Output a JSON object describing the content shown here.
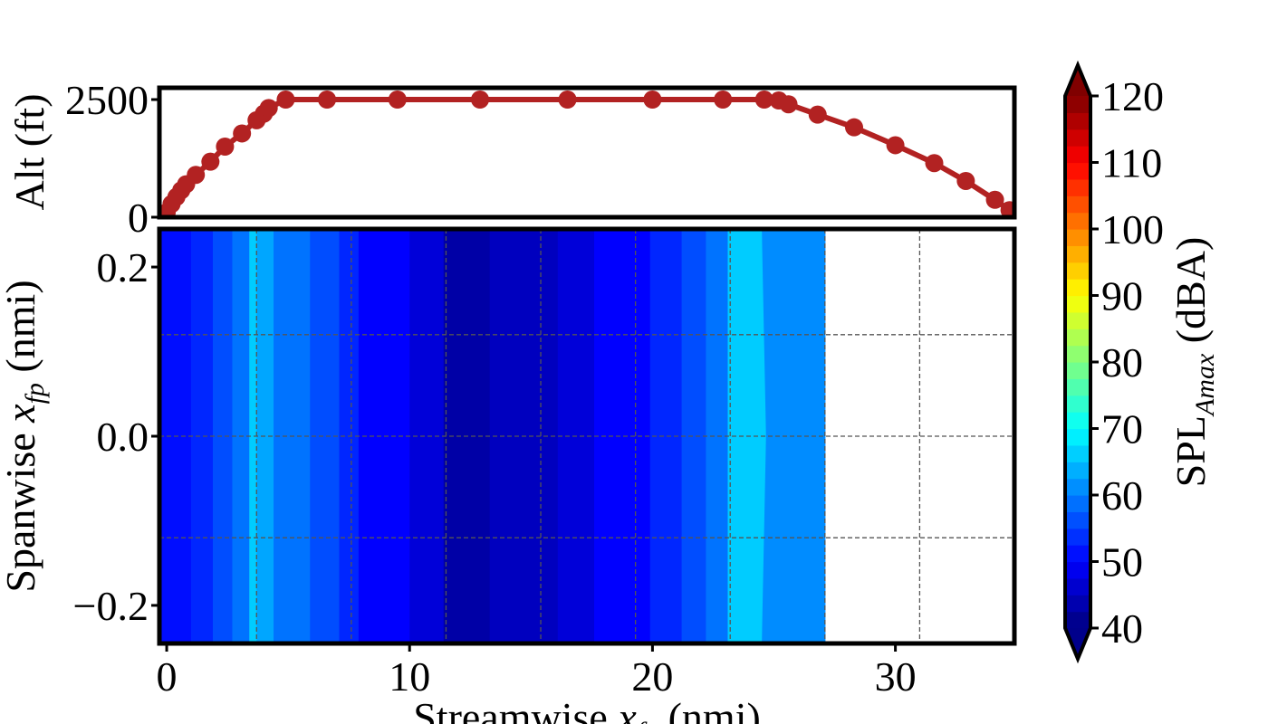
{
  "chart_data": [
    {
      "type": "line",
      "panel": "altitude-profile",
      "ylabel": "Alt (ft)",
      "xlim": [
        -0.3,
        34.9
      ],
      "ylim": [
        0,
        2750
      ],
      "yticks": [
        "0",
        "2500"
      ],
      "color": "#b22222",
      "x": [
        0.0,
        0.2,
        0.4,
        0.6,
        0.8,
        1.2,
        1.8,
        2.4,
        3.1,
        3.7,
        4.0,
        4.2,
        4.9,
        6.6,
        9.5,
        12.9,
        16.5,
        20.0,
        22.9,
        24.6,
        25.2,
        25.6,
        26.8,
        28.3,
        30.0,
        31.6,
        32.9,
        34.1,
        34.7
      ],
      "y": [
        100,
        280,
        430,
        570,
        700,
        900,
        1180,
        1500,
        1780,
        2060,
        2200,
        2320,
        2500,
        2500,
        2500,
        2500,
        2500,
        2500,
        2500,
        2500,
        2480,
        2400,
        2180,
        1910,
        1530,
        1150,
        770,
        370,
        150
      ]
    },
    {
      "type": "heatmap",
      "panel": "spl-contour",
      "xlabel": "Streamwise x_fp (nmi)",
      "xlabel_text": "Streamwise ",
      "xlabel_sym": "x",
      "xlabel_sub": "fp",
      "xlabel_unit": " (nmi)",
      "ylabel_text": "Spanwise ",
      "ylabel_sym": "x",
      "ylabel_sub": "fp",
      "ylabel_unit": " (nmi)",
      "xlim": [
        -0.3,
        34.9
      ],
      "ylim": [
        -0.245,
        0.245
      ],
      "xticks": [
        0,
        10,
        20,
        30
      ],
      "yticks": [
        {
          "v": 0.2,
          "t": "0.2"
        },
        {
          "v": 0.0,
          "t": "0.0"
        },
        {
          "v": -0.2,
          "t": "−0.2"
        }
      ],
      "grid": true,
      "data_extent_x": 27.1,
      "bands": [
        {
          "x0": -0.3,
          "x1": 1.0,
          "level": 51
        },
        {
          "x0": 1.0,
          "x1": 1.9,
          "level": 53
        },
        {
          "x0": 1.9,
          "x1": 2.7,
          "level": 56
        },
        {
          "x0": 2.7,
          "x1": 3.4,
          "level": 59
        },
        {
          "x0": 3.4,
          "x1": 3.7,
          "level": 66
        },
        {
          "x0": 3.7,
          "x1": 4.4,
          "level": 63
        },
        {
          "x0": 4.4,
          "x1": 5.9,
          "level": 59
        },
        {
          "x0": 5.9,
          "x1": 7.1,
          "level": 56
        },
        {
          "x0": 7.1,
          "x1": 7.9,
          "level": 53
        },
        {
          "x0": 7.9,
          "x1": 10.0,
          "level": 50
        },
        {
          "x0": 10.0,
          "x1": 11.4,
          "level": 47
        },
        {
          "x0": 11.4,
          "x1": 13.3,
          "level": 43
        },
        {
          "x0": 13.3,
          "x1": 16.1,
          "level": 45
        },
        {
          "x0": 16.1,
          "x1": 17.6,
          "level": 47
        },
        {
          "x0": 17.6,
          "x1": 19.9,
          "level": 50
        },
        {
          "x0": 19.9,
          "x1": 21.2,
          "level": 53
        },
        {
          "x0": 21.2,
          "x1": 22.2,
          "level": 56
        },
        {
          "x0": 22.2,
          "x1": 23.1,
          "level": 59
        },
        {
          "x0": 23.1,
          "x1": 24.5,
          "level": 66
        },
        {
          "x0": 24.5,
          "x1": 27.1,
          "level": 61
        }
      ]
    },
    {
      "type": "colorbar",
      "label_text": "SPL",
      "label_sub": "Amax",
      "label_unit": " (dBA)",
      "vmin": 40,
      "vmax": 120,
      "ticks": [
        40,
        50,
        60,
        70,
        80,
        90,
        100,
        110,
        120
      ],
      "colormap": "jet",
      "extend": "both"
    }
  ]
}
